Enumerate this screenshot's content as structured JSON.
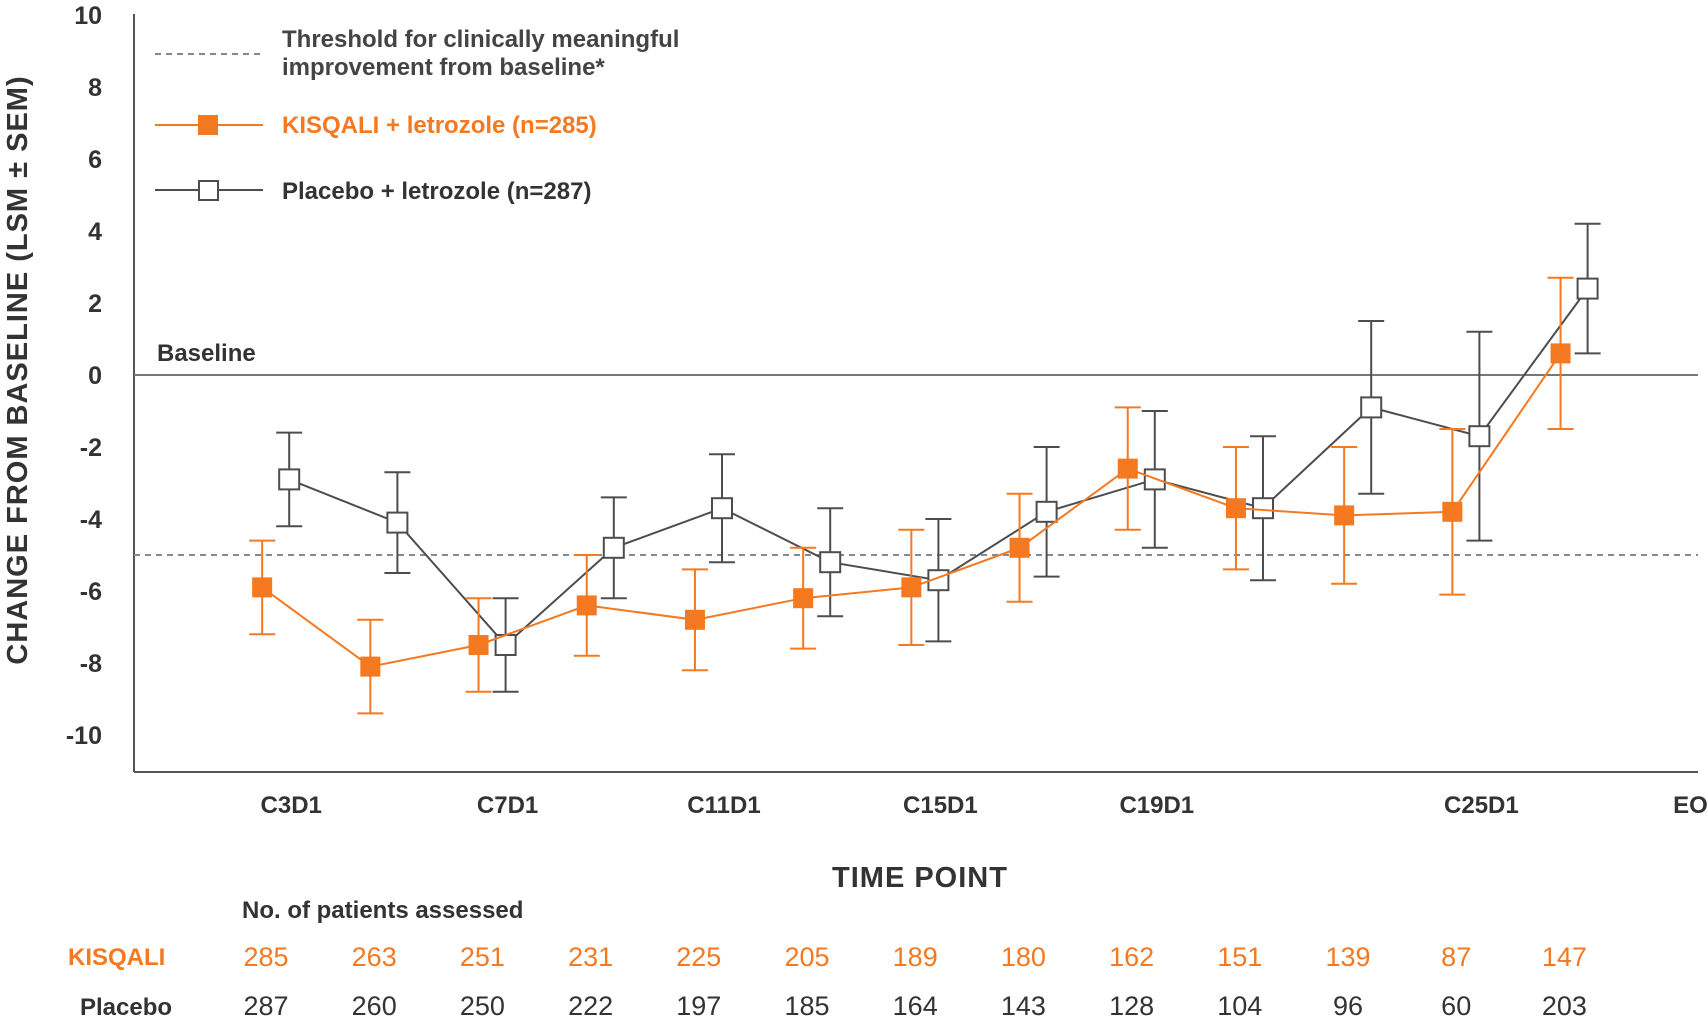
{
  "chart_data": {
    "type": "line",
    "title": "",
    "ylabel": "CHANGE FROM BASELINE (LSM ± SEM)",
    "xlabel": "TIME POINT",
    "ylim": [
      -11,
      10
    ],
    "yticks": [
      10,
      8,
      6,
      4,
      2,
      0,
      -2,
      -4,
      -6,
      -8,
      -10
    ],
    "ytick_labels": [
      "10",
      "8",
      "6",
      "4",
      "2",
      "0",
      "-2",
      "-4",
      "-6",
      "-8",
      "-10"
    ],
    "x_slots": 14,
    "xtick_labels": [
      {
        "slot": 1.0,
        "label": "C3D1"
      },
      {
        "slot": 3.0,
        "label": "C7D1"
      },
      {
        "slot": 5.0,
        "label": "C11D1"
      },
      {
        "slot": 7.0,
        "label": "C15D1"
      },
      {
        "slot": 9.0,
        "label": "C19D1"
      },
      {
        "slot": 12.0,
        "label": "C25D1"
      },
      {
        "slot": 14.0,
        "label": "EOT"
      }
    ],
    "baseline": {
      "value": 0,
      "label": "Baseline"
    },
    "threshold": {
      "value": -5,
      "label_line1": "Threshold for clinically meaningful",
      "label_line2": "improvement from baseline*"
    },
    "series": [
      {
        "name": "KISQALI + letrozole (n=285)",
        "short": "KISQALI",
        "color": "#f47920",
        "marker": "filled-square",
        "x": [
          0.75,
          1.75,
          2.75,
          3.75,
          4.75,
          5.75,
          6.75,
          7.75,
          8.75,
          9.75,
          10.75,
          11.75,
          12.75
        ],
        "values": [
          -5.9,
          -8.1,
          -7.5,
          -6.4,
          -6.8,
          -6.2,
          -5.9,
          -4.8,
          -2.6,
          -3.7,
          -3.9,
          -3.8,
          0.6
        ],
        "err": [
          1.3,
          1.3,
          1.3,
          1.4,
          1.4,
          1.4,
          1.6,
          1.5,
          1.7,
          1.7,
          1.9,
          2.3,
          2.1
        ],
        "counts": [
          "285",
          "263",
          "251",
          "231",
          "225",
          "205",
          "189",
          "180",
          "162",
          "151",
          "139",
          "87",
          "147"
        ]
      },
      {
        "name": "Placebo + letrozole (n=287)",
        "short": "Placebo",
        "color": "#4d4d4f",
        "marker": "open-square",
        "x": [
          1.0,
          2.0,
          3.0,
          4.0,
          5.0,
          6.0,
          7.0,
          8.0,
          9.0,
          10.0,
          11.0,
          12.0,
          13.0
        ],
        "values": [
          -2.9,
          -4.1,
          -7.5,
          -4.8,
          -3.7,
          -5.2,
          -5.7,
          -3.8,
          -2.9,
          -3.7,
          -0.9,
          -1.7,
          2.4
        ],
        "err": [
          1.3,
          1.4,
          1.3,
          1.4,
          1.5,
          1.5,
          1.7,
          1.8,
          1.9,
          2.0,
          2.4,
          2.9,
          1.8
        ],
        "counts": [
          "287",
          "260",
          "250",
          "222",
          "197",
          "185",
          "164",
          "143",
          "128",
          "104",
          "96",
          "60",
          "203"
        ]
      }
    ],
    "patients_header": "No. of patients assessed",
    "colors": {
      "axis": "#555555",
      "threshold": "#7d8a99",
      "text": "#333333"
    }
  }
}
